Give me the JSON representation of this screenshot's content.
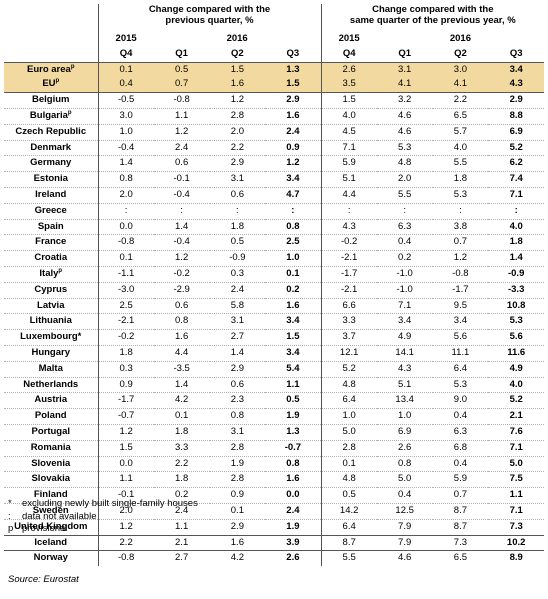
{
  "header": {
    "group1": "Change compared with the\nprevious quarter, %",
    "group2": "Change compared with the\nsame quarter of the previous year, %",
    "year_2015": "2015",
    "year_2016": "2016",
    "quarters": [
      "Q4",
      "Q1",
      "Q2",
      "Q3",
      "Q4",
      "Q1",
      "Q2",
      "Q3"
    ]
  },
  "rows": [
    {
      "country": "Euro area",
      "sup": "p",
      "values": [
        "0.1",
        "0.5",
        "1.5",
        "1.3",
        "2.6",
        "3.1",
        "3.0",
        "3.4"
      ],
      "agg": true
    },
    {
      "country": "EU",
      "sup": "p",
      "values": [
        "0.4",
        "0.7",
        "1.6",
        "1.5",
        "3.5",
        "4.1",
        "4.1",
        "4.3"
      ],
      "agg": true
    },
    {
      "country": "Belgium",
      "sup": "",
      "values": [
        "-0.5",
        "-0.8",
        "1.2",
        "2.9",
        "1.5",
        "3.2",
        "2.2",
        "2.9"
      ]
    },
    {
      "country": "Bulgaria",
      "sup": "p",
      "values": [
        "3.0",
        "1.1",
        "2.8",
        "1.6",
        "4.0",
        "4.6",
        "6.5",
        "8.8"
      ]
    },
    {
      "country": "Czech Republic",
      "sup": "",
      "values": [
        "1.0",
        "1.2",
        "2.0",
        "2.4",
        "4.5",
        "4.6",
        "5.7",
        "6.9"
      ]
    },
    {
      "country": "Denmark",
      "sup": "",
      "values": [
        "-0.4",
        "2.4",
        "2.2",
        "0.9",
        "7.1",
        "5.3",
        "4.0",
        "5.2"
      ]
    },
    {
      "country": "Germany",
      "sup": "",
      "values": [
        "1.4",
        "0.6",
        "2.9",
        "1.2",
        "5.9",
        "4.8",
        "5.5",
        "6.2"
      ]
    },
    {
      "country": "Estonia",
      "sup": "",
      "values": [
        "0.8",
        "-0.1",
        "3.1",
        "3.4",
        "5.1",
        "2.0",
        "1.8",
        "7.4"
      ]
    },
    {
      "country": "Ireland",
      "sup": "",
      "values": [
        "2.0",
        "-0.4",
        "0.6",
        "4.7",
        "4.4",
        "5.5",
        "5.3",
        "7.1"
      ]
    },
    {
      "country": "Greece",
      "sup": "",
      "values": [
        ":",
        ":",
        ":",
        ":",
        ":",
        ":",
        ":",
        ":"
      ]
    },
    {
      "country": "Spain",
      "sup": "",
      "values": [
        "0.0",
        "1.4",
        "1.8",
        "0.8",
        "4.3",
        "6.3",
        "3.8",
        "4.0"
      ]
    },
    {
      "country": "France",
      "sup": "",
      "values": [
        "-0.8",
        "-0.4",
        "0.5",
        "2.5",
        "-0.2",
        "0.4",
        "0.7",
        "1.8"
      ]
    },
    {
      "country": "Croatia",
      "sup": "",
      "values": [
        "0.1",
        "1.2",
        "-0.9",
        "1.0",
        "-2.1",
        "0.2",
        "1.2",
        "1.4"
      ]
    },
    {
      "country": "Italy",
      "sup": "p",
      "values": [
        "-1.1",
        "-0.2",
        "0.3",
        "0.1",
        "-1.7",
        "-1.0",
        "-0.8",
        "-0.9"
      ]
    },
    {
      "country": "Cyprus",
      "sup": "",
      "values": [
        "-3.0",
        "-2.9",
        "2.4",
        "0.2",
        "-2.1",
        "-1.0",
        "-1.7",
        "-3.3"
      ]
    },
    {
      "country": "Latvia",
      "sup": "",
      "values": [
        "2.5",
        "0.6",
        "5.8",
        "1.6",
        "6.6",
        "7.1",
        "9.5",
        "10.8"
      ]
    },
    {
      "country": "Lithuania",
      "sup": "",
      "values": [
        "-2.1",
        "0.8",
        "3.1",
        "3.4",
        "3.3",
        "3.4",
        "3.4",
        "5.3"
      ]
    },
    {
      "country": "Luxembourg*",
      "sup": "",
      "values": [
        "-0.2",
        "1.6",
        "2.7",
        "1.5",
        "3.7",
        "4.9",
        "5.6",
        "5.6"
      ]
    },
    {
      "country": "Hungary",
      "sup": "",
      "values": [
        "1.8",
        "4.4",
        "1.4",
        "3.4",
        "12.1",
        "14.1",
        "11.1",
        "11.6"
      ]
    },
    {
      "country": "Malta",
      "sup": "",
      "values": [
        "0.3",
        "-3.5",
        "2.9",
        "5.4",
        "5.2",
        "4.3",
        "6.4",
        "4.9"
      ]
    },
    {
      "country": "Netherlands",
      "sup": "",
      "values": [
        "0.9",
        "1.4",
        "0.6",
        "1.1",
        "4.8",
        "5.1",
        "5.3",
        "4.0"
      ]
    },
    {
      "country": "Austria",
      "sup": "",
      "values": [
        "-1.7",
        "4.2",
        "2.3",
        "0.5",
        "6.4",
        "13.4",
        "9.0",
        "5.2"
      ]
    },
    {
      "country": "Poland",
      "sup": "",
      "values": [
        "-0.7",
        "0.1",
        "0.8",
        "1.9",
        "1.0",
        "1.0",
        "0.4",
        "2.1"
      ]
    },
    {
      "country": "Portugal",
      "sup": "",
      "values": [
        "1.2",
        "1.8",
        "3.1",
        "1.3",
        "5.0",
        "6.9",
        "6.3",
        "7.6"
      ]
    },
    {
      "country": "Romania",
      "sup": "",
      "values": [
        "1.5",
        "3.3",
        "2.8",
        "-0.7",
        "2.8",
        "2.6",
        "6.8",
        "7.1"
      ]
    },
    {
      "country": "Slovenia",
      "sup": "",
      "values": [
        "0.0",
        "2.2",
        "1.9",
        "0.8",
        "0.1",
        "0.8",
        "0.4",
        "5.0"
      ]
    },
    {
      "country": "Slovakia",
      "sup": "",
      "values": [
        "1.1",
        "1.8",
        "2.8",
        "1.6",
        "4.8",
        "5.0",
        "5.9",
        "7.5"
      ]
    },
    {
      "country": "Finland",
      "sup": "",
      "values": [
        "-0.1",
        "0.2",
        "0.9",
        "0.0",
        "0.5",
        "0.4",
        "0.7",
        "1.1"
      ]
    },
    {
      "country": "Sweden",
      "sup": "",
      "values": [
        "2.0",
        "2.4",
        "0.1",
        "2.4",
        "14.2",
        "12.5",
        "8.7",
        "7.1"
      ]
    },
    {
      "country": "United Kingdom",
      "sup": "",
      "values": [
        "1.2",
        "1.1",
        "2.9",
        "1.9",
        "6.4",
        "7.9",
        "8.7",
        "7.3"
      ]
    },
    {
      "country": "Iceland",
      "sup": "",
      "values": [
        "2.2",
        "2.1",
        "1.6",
        "3.9",
        "8.7",
        "7.9",
        "7.3",
        "10.2"
      ]
    },
    {
      "country": "Norway",
      "sup": "",
      "values": [
        "-0.8",
        "2.7",
        "4.2",
        "2.6",
        "5.5",
        "4.6",
        "6.5",
        "8.9"
      ]
    }
  ],
  "notes": [
    {
      "symbol": "*",
      "text": "excluding newly built single-family houses"
    },
    {
      "symbol": ":",
      "text": "data not available"
    },
    {
      "symbol": "p",
      "text": "provisional"
    }
  ],
  "source": "Source: Eurostat"
}
